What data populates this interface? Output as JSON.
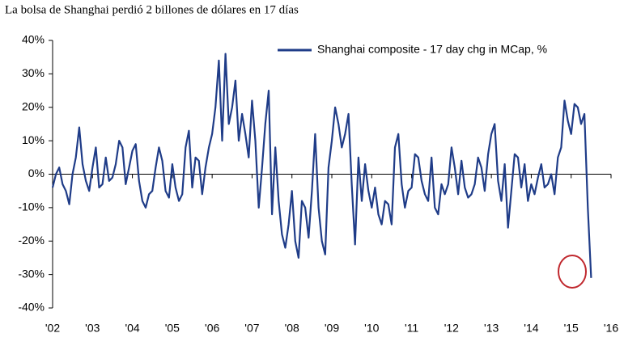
{
  "chart_data": {
    "type": "line",
    "title": "La bolsa de Shanghai perdió 2 billones de dólares en 17 días",
    "x": [
      2002,
      2002.083,
      2002.167,
      2002.25,
      2002.333,
      2002.417,
      2002.5,
      2002.583,
      2002.667,
      2002.75,
      2002.833,
      2002.917,
      2003,
      2003.083,
      2003.167,
      2003.25,
      2003.333,
      2003.417,
      2003.5,
      2003.583,
      2003.667,
      2003.75,
      2003.833,
      2003.917,
      2004,
      2004.083,
      2004.167,
      2004.25,
      2004.333,
      2004.417,
      2004.5,
      2004.583,
      2004.667,
      2004.75,
      2004.833,
      2004.917,
      2005,
      2005.083,
      2005.167,
      2005.25,
      2005.333,
      2005.417,
      2005.5,
      2005.583,
      2005.667,
      2005.75,
      2005.833,
      2005.917,
      2006,
      2006.083,
      2006.167,
      2006.25,
      2006.333,
      2006.417,
      2006.5,
      2006.583,
      2006.667,
      2006.75,
      2006.833,
      2006.917,
      2007,
      2007.083,
      2007.167,
      2007.25,
      2007.333,
      2007.417,
      2007.5,
      2007.583,
      2007.667,
      2007.75,
      2007.833,
      2007.917,
      2008,
      2008.083,
      2008.167,
      2008.25,
      2008.333,
      2008.417,
      2008.5,
      2008.583,
      2008.667,
      2008.75,
      2008.833,
      2008.917,
      2009,
      2009.083,
      2009.167,
      2009.25,
      2009.333,
      2009.417,
      2009.5,
      2009.583,
      2009.667,
      2009.75,
      2009.833,
      2009.917,
      2010,
      2010.083,
      2010.167,
      2010.25,
      2010.333,
      2010.417,
      2010.5,
      2010.583,
      2010.667,
      2010.75,
      2010.833,
      2010.917,
      2011,
      2011.083,
      2011.167,
      2011.25,
      2011.333,
      2011.417,
      2011.5,
      2011.583,
      2011.667,
      2011.75,
      2011.833,
      2011.917,
      2012,
      2012.083,
      2012.167,
      2012.25,
      2012.333,
      2012.417,
      2012.5,
      2012.583,
      2012.667,
      2012.75,
      2012.833,
      2012.917,
      2013,
      2013.083,
      2013.167,
      2013.25,
      2013.333,
      2013.417,
      2013.5,
      2013.583,
      2013.667,
      2013.75,
      2013.833,
      2013.917,
      2014,
      2014.083,
      2014.167,
      2014.25,
      2014.333,
      2014.417,
      2014.5,
      2014.583,
      2014.667,
      2014.75,
      2014.833,
      2014.917,
      2015,
      2015.083,
      2015.167,
      2015.25,
      2015.333,
      2015.417,
      2015.5
    ],
    "series": [
      {
        "name": "Shanghai composite - 17 day chg in MCap, %",
        "color": "#1f3c88",
        "values": [
          -4,
          0,
          2,
          -3,
          -5,
          -9,
          0,
          5,
          14,
          3,
          -2,
          -5,
          2,
          8,
          -4,
          -3,
          5,
          -2,
          -1,
          3,
          10,
          8,
          -3,
          2,
          7,
          9,
          -2,
          -8,
          -10,
          -6,
          -5,
          2,
          8,
          4,
          -5,
          -7,
          3,
          -4,
          -8,
          -6,
          8,
          13,
          -4,
          5,
          4,
          -6,
          2,
          8,
          12,
          20,
          34,
          10,
          36,
          15,
          20,
          28,
          10,
          18,
          12,
          5,
          22,
          10,
          -10,
          2,
          15,
          25,
          -12,
          8,
          -8,
          -18,
          -22,
          -15,
          -5,
          -20,
          -25,
          -8,
          -10,
          -19,
          -5,
          12,
          -10,
          -20,
          -24,
          2,
          10,
          20,
          15,
          8,
          12,
          18,
          -3,
          -21,
          5,
          -8,
          3,
          -5,
          -10,
          -4,
          -12,
          -15,
          -8,
          -9,
          -15,
          8,
          12,
          -3,
          -10,
          -5,
          -4,
          6,
          5,
          -2,
          -6,
          -8,
          5,
          -10,
          -12,
          -3,
          -6,
          -3,
          8,
          2,
          -6,
          4,
          -4,
          -7,
          -6,
          -3,
          5,
          2,
          -5,
          6,
          12,
          15,
          -2,
          -8,
          3,
          -16,
          -5,
          6,
          5,
          -4,
          3,
          -8,
          -3,
          -6,
          -1,
          3,
          -4,
          -3,
          0,
          -6,
          5,
          8,
          22,
          16,
          12,
          21,
          20,
          15,
          18,
          -10,
          -31
        ]
      }
    ],
    "xlim": [
      2002,
      2016
    ],
    "xticks": [
      {
        "value": 2002,
        "label": "'02"
      },
      {
        "value": 2003,
        "label": "'03"
      },
      {
        "value": 2004,
        "label": "'04"
      },
      {
        "value": 2005,
        "label": "'05"
      },
      {
        "value": 2006,
        "label": "'06"
      },
      {
        "value": 2007,
        "label": "'07"
      },
      {
        "value": 2008,
        "label": "'08"
      },
      {
        "value": 2009,
        "label": "'09"
      },
      {
        "value": 2010,
        "label": "'10"
      },
      {
        "value": 2011,
        "label": "'11"
      },
      {
        "value": 2012,
        "label": "'12"
      },
      {
        "value": 2013,
        "label": "'13"
      },
      {
        "value": 2014,
        "label": "'14"
      },
      {
        "value": 2015,
        "label": "'15"
      },
      {
        "value": 2016,
        "label": "'16"
      }
    ],
    "ylim": [
      -40,
      40
    ],
    "yticks": [
      {
        "value": -40,
        "label": "-40%"
      },
      {
        "value": -30,
        "label": "-30%"
      },
      {
        "value": -20,
        "label": "-20%"
      },
      {
        "value": -10,
        "label": "-10%"
      },
      {
        "value": 0,
        "label": "0%"
      },
      {
        "value": 10,
        "label": "10%"
      },
      {
        "value": 20,
        "label": "20%"
      },
      {
        "value": 30,
        "label": "30%"
      },
      {
        "value": 40,
        "label": "40%"
      }
    ],
    "legend": "upper right"
  }
}
